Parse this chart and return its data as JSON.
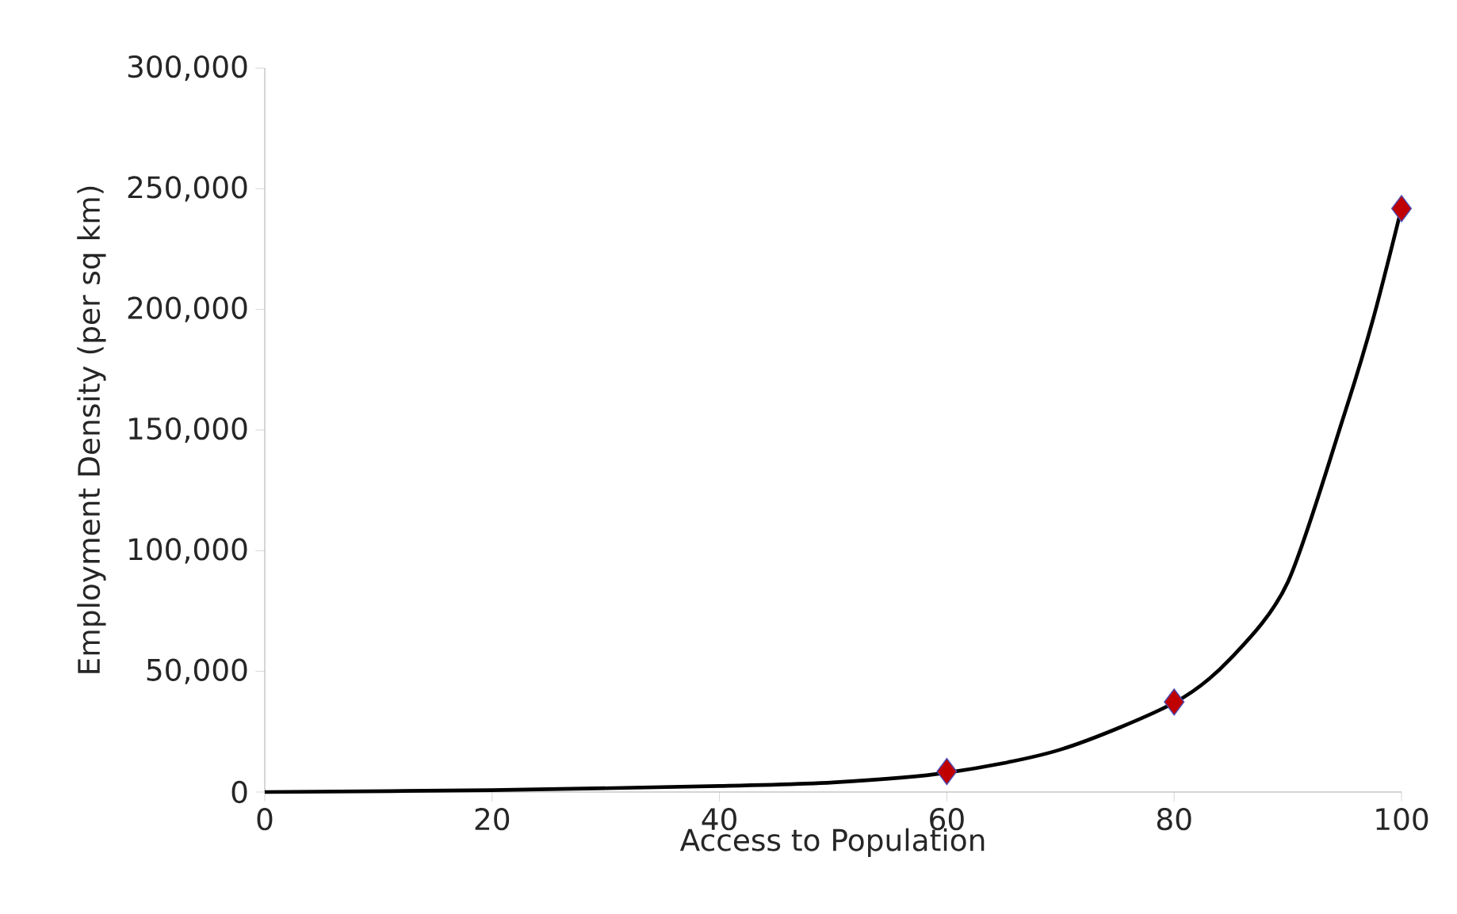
{
  "chart_data": {
    "type": "scatter",
    "xlabel": "Access to Population",
    "ylabel": "Employment Density (per sq km)",
    "xlim": [
      0,
      100
    ],
    "xticks": [
      0,
      20,
      40,
      60,
      80,
      100
    ],
    "ylim": [
      0,
      300000
    ],
    "yticks": [
      {
        "value": 0,
        "label": "0"
      },
      {
        "value": 50000,
        "label": "50,000"
      },
      {
        "value": 100000,
        "label": "100,000"
      },
      {
        "value": 150000,
        "label": "150,000"
      },
      {
        "value": 200000,
        "label": "200,000"
      },
      {
        "value": 250000,
        "label": "250,000"
      },
      {
        "value": 300000,
        "label": "300,000"
      }
    ],
    "grid": false,
    "series": [
      {
        "type": "line",
        "color": "#000000",
        "marker": "none",
        "line_style": "solid",
        "x": [
          0,
          20,
          40,
          50,
          60,
          70,
          80,
          85,
          90,
          95,
          97.5,
          100
        ],
        "values": [
          0,
          800,
          2500,
          4000,
          8000,
          17600,
          37000,
          55500,
          87000,
          157000,
          196000,
          242000
        ]
      },
      {
        "color": "#c00000",
        "marker": "diamond",
        "x": [
          60,
          80,
          100
        ],
        "values": [
          8500,
          37300,
          241800
        ]
      }
    ]
  }
}
